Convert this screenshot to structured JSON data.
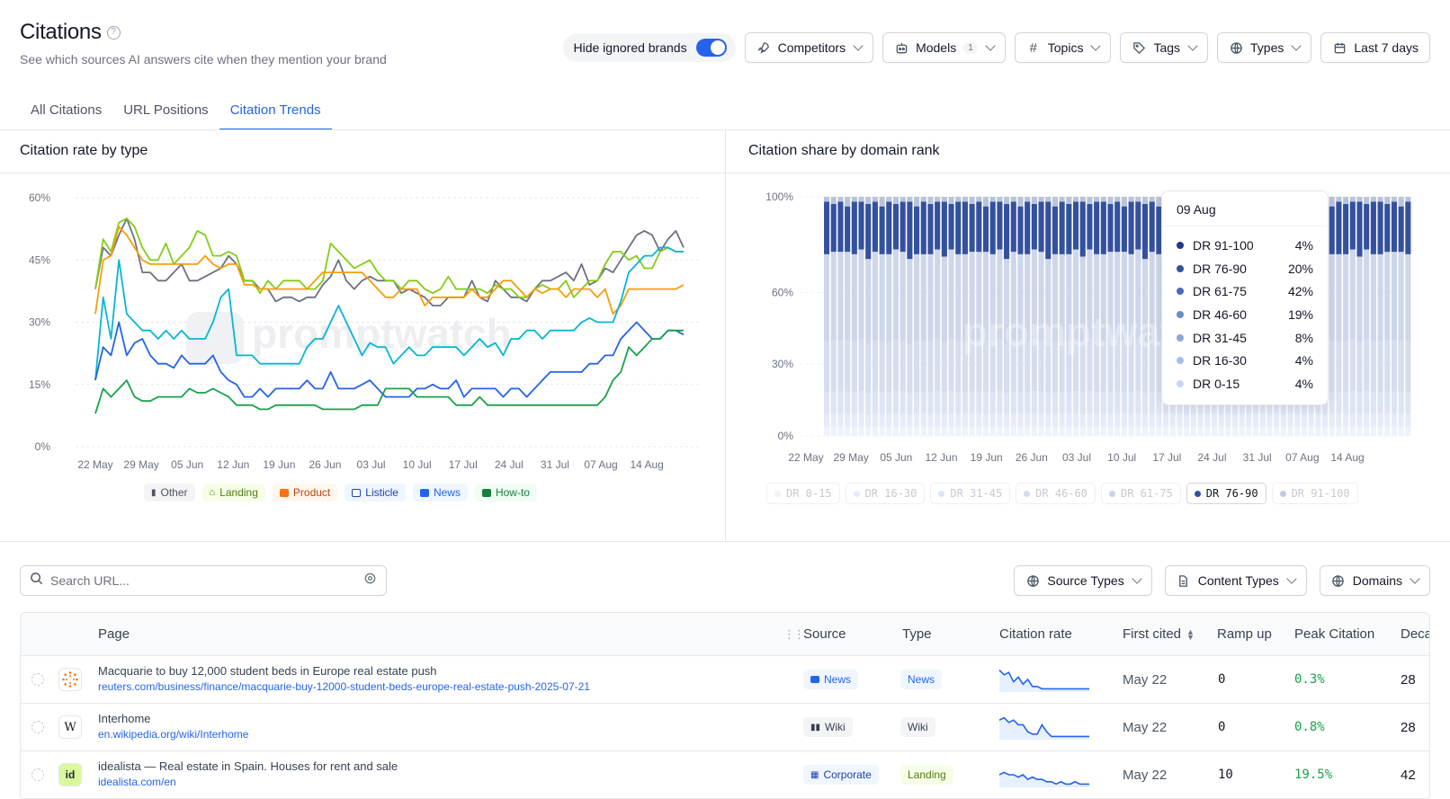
{
  "header": {
    "title": "Citations",
    "subtitle": "See which sources AI answers cite when they mention your brand"
  },
  "toolbar": {
    "hide_ignored_label": "Hide ignored brands",
    "hide_ignored_on": true,
    "competitors": "Competitors",
    "models": "Models",
    "models_count": "1",
    "topics": "Topics",
    "tags": "Tags",
    "types": "Types",
    "date_range": "Last 7 days"
  },
  "tabs": [
    {
      "label": "All Citations",
      "active": false
    },
    {
      "label": "URL Positions",
      "active": false
    },
    {
      "label": "Citation Trends",
      "active": true
    }
  ],
  "left_panel": {
    "title": "Citation rate by type"
  },
  "right_panel": {
    "title": "Citation share by domain rank"
  },
  "watermark": "promptwatch",
  "colors": {
    "other": "#6b7280",
    "landing": "#84cc16",
    "product": "#f59e0b",
    "listicle": "#06b6d4",
    "news": "#2563eb",
    "howto": "#16a34a",
    "accent": "#2563eb"
  },
  "chart_data": [
    {
      "type": "line",
      "title": "",
      "y_ticks": [
        "60%",
        "45%",
        "30%",
        "15%",
        "0%"
      ],
      "ylim": [
        0,
        60
      ],
      "x_ticks": [
        "22 May",
        "29 May",
        "05 Jun",
        "12 Jun",
        "19 Jun",
        "26 Jun",
        "03 Jul",
        "10 Jul",
        "17 Jul",
        "24 Jul",
        "31 Jul",
        "07 Aug",
        "14 Aug"
      ],
      "legend": [
        "Other",
        "Landing",
        "Product",
        "Listicle",
        "News",
        "How-to"
      ],
      "series": [
        {
          "name": "Other",
          "values": [
            38,
            48,
            46,
            51,
            55,
            50,
            42,
            42,
            40,
            40,
            42,
            44,
            40,
            40,
            41,
            42,
            43,
            46,
            44,
            40,
            40,
            38,
            38,
            35,
            36,
            36,
            35,
            36,
            36,
            39,
            41,
            45,
            40,
            38,
            40,
            41,
            40,
            40,
            40,
            37,
            38,
            37,
            36,
            34,
            34,
            36,
            36,
            36,
            40,
            36,
            35,
            40,
            38,
            36,
            36,
            35,
            38,
            40,
            40,
            41,
            42,
            40,
            44,
            39,
            40,
            43,
            42,
            45,
            48,
            51,
            52,
            51,
            47,
            50,
            52,
            48
          ]
        },
        {
          "name": "Landing",
          "values": [
            38,
            50,
            47,
            54,
            55,
            53,
            48,
            45,
            45,
            49,
            44,
            46,
            48,
            52,
            51,
            46,
            46,
            47,
            46,
            40,
            40,
            37,
            40,
            38,
            40,
            40,
            40,
            38,
            38,
            40,
            49,
            47,
            45,
            43,
            44,
            45,
            42,
            40,
            40,
            38,
            40,
            40,
            38,
            37,
            38,
            41,
            38,
            38,
            38,
            38,
            37,
            39,
            38,
            38,
            36,
            36,
            38,
            39,
            38,
            38,
            40,
            36,
            38,
            40,
            40,
            44,
            47,
            47,
            45,
            46,
            43,
            43,
            47,
            48,
            47,
            47
          ]
        },
        {
          "name": "Product",
          "values": [
            32,
            45,
            46,
            53,
            51,
            48,
            45,
            44,
            44,
            44,
            44,
            44,
            44,
            44,
            46,
            44,
            43,
            44,
            44,
            39,
            39,
            38,
            38,
            38,
            38,
            38,
            38,
            38,
            40,
            42,
            42,
            42,
            42,
            42,
            42,
            40,
            38,
            36,
            36,
            38,
            38,
            38,
            34,
            36,
            36,
            36,
            36,
            36,
            38,
            36,
            36,
            38,
            40,
            40,
            38,
            36,
            38,
            37,
            38,
            38,
            36,
            38,
            38,
            38,
            36,
            38,
            32,
            34,
            38,
            38,
            38,
            38,
            38,
            38,
            38,
            39
          ]
        },
        {
          "name": "Listicle",
          "values": [
            16,
            36,
            26,
            45,
            32,
            30,
            28,
            28,
            26,
            28,
            26,
            28,
            26,
            26,
            26,
            30,
            36,
            38,
            22,
            22,
            22,
            20,
            20,
            20,
            20,
            20,
            20,
            24,
            26,
            26,
            30,
            34,
            30,
            26,
            22,
            25,
            24,
            24,
            20,
            22,
            24,
            22,
            22,
            24,
            24,
            24,
            24,
            22,
            24,
            26,
            24,
            25,
            22,
            26,
            26,
            28,
            28,
            26,
            28,
            28,
            28,
            28,
            30,
            31,
            30,
            30,
            30,
            35,
            42,
            44,
            46,
            46,
            48,
            48,
            47,
            47
          ]
        },
        {
          "name": "News",
          "values": [
            16,
            24,
            22,
            30,
            22,
            25,
            26,
            22,
            20,
            20,
            19,
            22,
            20,
            20,
            20,
            22,
            18,
            16,
            15,
            12,
            12,
            14,
            12,
            14,
            14,
            14,
            14,
            16,
            14,
            14,
            18,
            14,
            14,
            14,
            15,
            16,
            14,
            12,
            12,
            12,
            12,
            14,
            14,
            15,
            14,
            14,
            16,
            12,
            14,
            14,
            14,
            14,
            12,
            14,
            14,
            12,
            14,
            16,
            18,
            18,
            18,
            18,
            18,
            20,
            20,
            22,
            22,
            26,
            28,
            30,
            28,
            26,
            26,
            28,
            28,
            27
          ]
        },
        {
          "name": "How-to",
          "values": [
            8,
            14,
            12,
            14,
            16,
            12,
            11,
            11,
            12,
            12,
            12,
            12,
            14,
            13,
            13,
            14,
            13,
            12,
            10,
            10,
            10,
            9,
            9,
            10,
            10,
            10,
            10,
            10,
            10,
            9,
            9,
            9,
            9,
            9,
            10,
            10,
            10,
            14,
            14,
            14,
            14,
            12,
            12,
            12,
            12,
            12,
            10,
            10,
            10,
            12,
            10,
            10,
            10,
            10,
            10,
            10,
            10,
            10,
            10,
            10,
            10,
            10,
            10,
            10,
            10,
            12,
            16,
            18,
            24,
            22,
            24,
            26,
            26,
            28,
            28,
            28
          ]
        }
      ]
    },
    {
      "type": "bar",
      "stacked": true,
      "title": "",
      "y_ticks": [
        "100%",
        "60%",
        "30%",
        "0%"
      ],
      "ylim": [
        0,
        100
      ],
      "x_ticks": [
        "22 May",
        "29 May",
        "05 Jun",
        "12 Jun",
        "19 Jun",
        "26 Jun",
        "03 Jul",
        "10 Jul",
        "17 Jul",
        "24 Jul",
        "31 Jul",
        "07 Aug",
        "14 Aug"
      ],
      "bar_count": 85,
      "series_order": [
        "DR 0-15",
        "DR 16-30",
        "DR 31-45",
        "DR 46-60",
        "DR 61-75",
        "DR 76-90",
        "DR 91-100"
      ],
      "series_colors": [
        "#e8eefb",
        "#dbe3f5",
        "#d0d8ec",
        "#c6cfe4",
        "#bfc9e0",
        "#34519e",
        "#b9c3db"
      ],
      "top_share_pattern": [
        2,
        3,
        2,
        4,
        2,
        2,
        3,
        2,
        4,
        2,
        3,
        2,
        2,
        4,
        2,
        3,
        2,
        2,
        3,
        2
      ],
      "dr76_share_pattern": [
        22,
        20,
        21,
        19,
        22,
        20,
        23,
        21,
        20,
        22,
        19,
        21,
        24,
        20,
        22,
        21,
        20,
        23,
        19,
        22
      ],
      "legend_active": "DR 76-90",
      "tooltip": {
        "date": "09 Aug",
        "rows": [
          {
            "label": "DR 91-100",
            "value": "4%",
            "color": "#1e3a8a"
          },
          {
            "label": "DR 76-90",
            "value": "20%",
            "color": "#34519e"
          },
          {
            "label": "DR 61-75",
            "value": "42%",
            "color": "#4a69b6"
          },
          {
            "label": "DR 46-60",
            "value": "19%",
            "color": "#6f8bc9"
          },
          {
            "label": "DR 31-45",
            "value": "8%",
            "color": "#8ea6da"
          },
          {
            "label": "DR 16-30",
            "value": "4%",
            "color": "#a6bdec"
          },
          {
            "label": "DR 0-15",
            "value": "4%",
            "color": "#c7d6f7"
          }
        ]
      }
    }
  ],
  "table_controls": {
    "search_placeholder": "Search URL...",
    "source_types": "Source Types",
    "content_types": "Content Types",
    "domains": "Domains"
  },
  "table": {
    "columns": [
      "Page",
      "Source",
      "Type",
      "Citation rate",
      "First cited",
      "Ramp up",
      "Peak Citation",
      "Deca"
    ],
    "rows": [
      {
        "favicon": "reuters",
        "title": "Macquarie to buy 12,000 student beds in Europe real estate push",
        "url": "reuters.com/business/finance/macquarie-buy-12000-student-beds-europe-real-estate-push-2025-07-21",
        "source": "News",
        "type": "News",
        "first_cited": "May 22",
        "ramp_up": "0",
        "peak": "0.3%",
        "decay": "28",
        "spark": [
          9,
          7,
          8,
          4,
          6,
          3,
          5,
          2,
          2,
          1,
          1,
          1,
          1,
          1,
          1,
          1,
          1,
          1,
          1,
          1
        ]
      },
      {
        "favicon": "W",
        "title": "Interhome",
        "url": "en.wikipedia.org/wiki/Interhome",
        "source": "Wiki",
        "type": "Wiki",
        "first_cited": "May 22",
        "ramp_up": "0",
        "peak": "0.8%",
        "decay": "28",
        "spark": [
          8,
          9,
          7,
          8,
          6,
          6,
          3,
          2,
          2,
          6,
          3,
          1,
          1,
          1,
          1,
          1,
          1,
          1,
          1,
          1
        ]
      },
      {
        "favicon": "id",
        "title": "idealista — Real estate in Spain. Houses for rent and sale",
        "url": "idealista.com/en",
        "source": "Corporate",
        "type": "Landing",
        "first_cited": "May 22",
        "ramp_up": "10",
        "peak": "19.5%",
        "decay": "42",
        "spark": [
          5,
          6,
          5,
          5,
          4,
          5,
          3,
          4,
          3,
          3,
          2,
          2,
          1,
          2,
          1,
          1,
          2,
          1,
          1,
          1
        ]
      }
    ]
  }
}
